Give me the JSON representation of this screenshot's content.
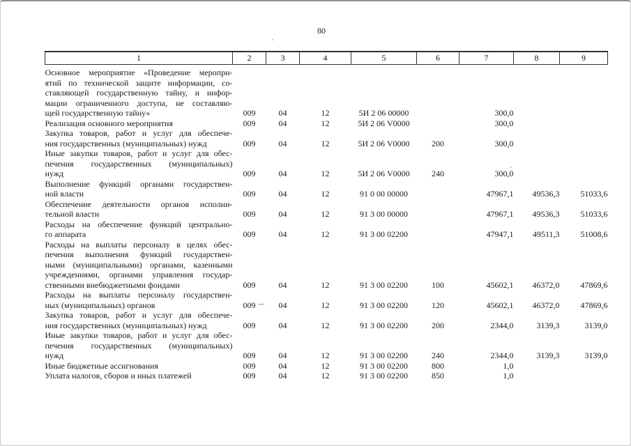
{
  "page": {
    "number": "80"
  },
  "table": {
    "header": [
      "1",
      "2",
      "3",
      "4",
      "5",
      "6",
      "7",
      "8",
      "9"
    ],
    "rows": [
      {
        "lines": [
          "Основное мероприятие «Проведение меропри-",
          "ятий по технической защите информации, со-",
          "ставляющей государственную тайну, и инфор-",
          "мации ограниченного доступа, не составляю-",
          "щей государственную тайну»"
        ],
        "c2": "009",
        "c3": "04",
        "c4": "12",
        "c5": "5И 2 06 00000",
        "c6": "",
        "c7": "300,0",
        "c8": "",
        "c9": ""
      },
      {
        "lines": [
          "Реализация основного мероприятия"
        ],
        "c2": "009",
        "c3": "04",
        "c4": "12",
        "c5": "5И 2 06 V0000",
        "c6": "",
        "c7": "300,0",
        "c8": "",
        "c9": ""
      },
      {
        "lines": [
          "Закупка товаров, работ и услуг для обеспече-",
          "ния государственных (муниципальных) нужд"
        ],
        "c2": "009",
        "c3": "04",
        "c4": "12",
        "c5": "5И 2 06 V0000",
        "c6": "200",
        "c7": "300,0",
        "c8": "",
        "c9": ""
      },
      {
        "lines": [
          "Иные закупки товаров, работ и услуг для обес-",
          "печения государственных (муниципальных)",
          "нужд"
        ],
        "c2": "009",
        "c3": "04",
        "c4": "12",
        "c5": "5И 2 06 V0000",
        "c6": "240",
        "c7": "300,0",
        "c8": "",
        "c9": ""
      },
      {
        "lines": [
          "Выполнение функций органами государствен-",
          "ной власти"
        ],
        "c2": "009",
        "c3": "04",
        "c4": "12",
        "c5": "91 0 00 00000",
        "c6": "",
        "c7": "47967,1",
        "c8": "49536,3",
        "c9": "51033,6"
      },
      {
        "lines": [
          "Обеспечение деятельности органов исполни-",
          "тельной власти"
        ],
        "c2": "009",
        "c3": "04",
        "c4": "12",
        "c5": "91 3 00 00000",
        "c6": "",
        "c7": "47967,1",
        "c8": "49536,3",
        "c9": "51033,6"
      },
      {
        "lines": [
          "Расходы на обеспечение функций центрально-",
          "го аппарата"
        ],
        "c2": "009",
        "c3": "04",
        "c4": "12",
        "c5": "91 3 00 02200",
        "c6": "",
        "c7": "47947,1",
        "c8": "49511,3",
        "c9": "51008,6"
      },
      {
        "lines": [
          "Расходы на выплаты персоналу в целях обес-",
          "печения выполнения функций государствен-",
          "ными (муниципальными) органами, казенными",
          "учреждениями, органами управления государ-",
          "ственными внебюджетными фондами"
        ],
        "c2": "009",
        "c3": "04",
        "c4": "12",
        "c5": "91 3 00 02200",
        "c6": "100",
        "c7": "45602,1",
        "c8": "46372,0",
        "c9": "47869,6"
      },
      {
        "lines": [
          "Расходы на выплаты персоналу государствен-",
          "ных (муниципальных) органов"
        ],
        "c2": "009",
        "c3": "04",
        "c4": "12",
        "c5": "91 3 00 02200",
        "c6": "120",
        "c7": "45602,1",
        "c8": "46372,0",
        "c9": "47869,6"
      },
      {
        "lines": [
          "Закупка товаров, работ и услуг для обеспече-",
          "ния государственных (муниципальных) нужд"
        ],
        "c2": "009",
        "c3": "04",
        "c4": "12",
        "c5": "91 3 00 02200",
        "c6": "200",
        "c7": "2344,0",
        "c8": "3139,3",
        "c9": "3139,0"
      },
      {
        "lines": [
          "Иные закупки товаров, работ и услуг для обес-",
          "печения государственных (муниципальных)",
          "нужд"
        ],
        "c2": "009",
        "c3": "04",
        "c4": "12",
        "c5": "91 3 00 02200",
        "c6": "240",
        "c7": "2344,0",
        "c8": "3139,3",
        "c9": "3139,0"
      },
      {
        "lines": [
          "Иные бюджетные ассигнования"
        ],
        "c2": "009",
        "c3": "04",
        "c4": "12",
        "c5": "91 3 00 02200",
        "c6": "800",
        "c7": "1,0",
        "c8": "",
        "c9": ""
      },
      {
        "lines": [
          "Уплата налогов, сборов и иных платежей"
        ],
        "c2": "009",
        "c3": "04",
        "c4": "12",
        "c5": "91 3 00 02200",
        "c6": "850",
        "c7": "1,0",
        "c8": "",
        "c9": ""
      }
    ]
  }
}
